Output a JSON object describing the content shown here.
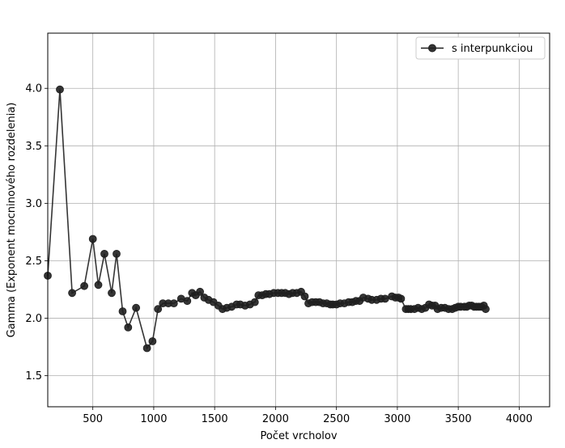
{
  "chart_data": {
    "type": "line",
    "xlabel": "Počet vrcholov",
    "ylabel": "Gamma (Exponent mocninového rozdelenia)",
    "xlim": [
      130,
      4250
    ],
    "ylim": [
      1.23,
      4.48
    ],
    "xticks": [
      500,
      1000,
      1500,
      2000,
      2500,
      3000,
      3500,
      4000
    ],
    "yticks": [
      1.5,
      2.0,
      2.5,
      3.0,
      3.5,
      4.0
    ],
    "xtick_labels": [
      "500",
      "1000",
      "1500",
      "2000",
      "2500",
      "3000",
      "3500",
      "4000"
    ],
    "ytick_labels": [
      "1.5",
      "2.0",
      "2.5",
      "3.0",
      "3.5",
      "4.0"
    ],
    "grid": true,
    "legend_position": "top-right",
    "series": [
      {
        "name": "s interpunkciou",
        "color": "#1f1f1f",
        "marker": "circle",
        "x": [
          130,
          230,
          330,
          430,
          500,
          545,
          595,
          655,
          695,
          745,
          790,
          855,
          945,
          990,
          1035,
          1075,
          1120,
          1165,
          1225,
          1275,
          1315,
          1345,
          1380,
          1415,
          1450,
          1490,
          1530,
          1565,
          1600,
          1640,
          1680,
          1710,
          1750,
          1790,
          1830,
          1860,
          1890,
          1920,
          1950,
          1985,
          2020,
          2050,
          2080,
          2110,
          2140,
          2175,
          2210,
          2240,
          2270,
          2300,
          2330,
          2360,
          2390,
          2420,
          2450,
          2470,
          2500,
          2530,
          2565,
          2600,
          2630,
          2660,
          2690,
          2720,
          2760,
          2790,
          2830,
          2865,
          2900,
          2955,
          2985,
          3010,
          3030,
          3070,
          3090,
          3110,
          3140,
          3170,
          3200,
          3230,
          3260,
          3285,
          3310,
          3330,
          3360,
          3390,
          3420,
          3450,
          3475,
          3500,
          3520,
          3550,
          3570,
          3590,
          3610,
          3630,
          3650,
          3670,
          3690,
          3710,
          3725
        ],
        "y": [
          2.37,
          3.99,
          2.22,
          2.28,
          2.69,
          2.29,
          2.56,
          2.22,
          2.56,
          2.06,
          1.92,
          2.09,
          1.74,
          1.8,
          2.08,
          2.13,
          2.13,
          2.13,
          2.17,
          2.15,
          2.22,
          2.2,
          2.23,
          2.18,
          2.16,
          2.14,
          2.11,
          2.08,
          2.09,
          2.1,
          2.12,
          2.12,
          2.11,
          2.12,
          2.14,
          2.2,
          2.2,
          2.21,
          2.21,
          2.22,
          2.22,
          2.22,
          2.22,
          2.21,
          2.22,
          2.22,
          2.23,
          2.19,
          2.13,
          2.14,
          2.14,
          2.14,
          2.13,
          2.13,
          2.12,
          2.12,
          2.12,
          2.13,
          2.13,
          2.14,
          2.14,
          2.15,
          2.15,
          2.18,
          2.17,
          2.16,
          2.16,
          2.17,
          2.17,
          2.19,
          2.18,
          2.18,
          2.17,
          2.08,
          2.08,
          2.08,
          2.08,
          2.09,
          2.08,
          2.09,
          2.12,
          2.11,
          2.11,
          2.08,
          2.09,
          2.09,
          2.08,
          2.08,
          2.09,
          2.1,
          2.1,
          2.1,
          2.1,
          2.11,
          2.11,
          2.1,
          2.1,
          2.1,
          2.1,
          2.11,
          2.08
        ]
      }
    ]
  }
}
